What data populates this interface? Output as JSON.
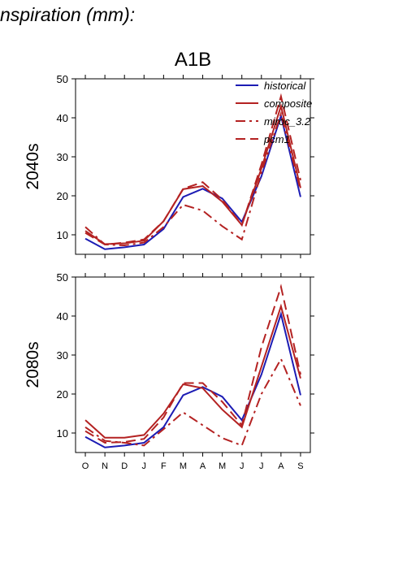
{
  "header": "nspiration (mm):",
  "chart_data": [
    {
      "type": "line",
      "title": "A1B",
      "ylabel": "2040s",
      "categories": [
        null,
        null,
        null,
        null,
        null,
        null,
        null,
        null,
        null,
        null,
        null,
        null
      ],
      "ylim": [
        5,
        50
      ],
      "yticks": [
        10,
        20,
        30,
        40,
        50
      ],
      "legend": "upper right",
      "series": [
        {
          "name": "historical",
          "color": "#1c1cb4",
          "linestyle": "solid",
          "values": [
            9,
            6.3,
            6.8,
            7.5,
            11.5,
            19.7,
            21.8,
            19.3,
            13.3,
            25,
            40.5,
            19.7
          ]
        },
        {
          "name": "composite",
          "color": "#b42222",
          "linestyle": "solid",
          "values": [
            11,
            7.6,
            7.8,
            8.5,
            13.5,
            21.7,
            22.5,
            18.5,
            12.5,
            27,
            43,
            22
          ]
        },
        {
          "name": "miroc_3.2",
          "color": "#b42222",
          "linestyle": "dashdot",
          "values": [
            12,
            7.5,
            7.3,
            8,
            12,
            17.7,
            16.2,
            12.2,
            8.8,
            26,
            41,
            21.5
          ]
        },
        {
          "name": "pcm1",
          "color": "#b42222",
          "linestyle": "dash",
          "values": [
            10.5,
            7.5,
            8,
            8.8,
            13.5,
            21.8,
            23.5,
            19,
            12.5,
            28,
            45.5,
            24
          ]
        }
      ]
    },
    {
      "type": "line",
      "ylabel": "2080s",
      "categories": [
        "O",
        "N",
        "D",
        "J",
        "F",
        "M",
        "A",
        "M",
        "J",
        "J",
        "A",
        "S"
      ],
      "ylim": [
        5,
        50
      ],
      "yticks": [
        10,
        20,
        30,
        40,
        50
      ],
      "series": [
        {
          "color": "#1c1cb4",
          "linestyle": "solid",
          "values": [
            9,
            6.3,
            6.8,
            7.5,
            11.5,
            19.7,
            21.8,
            19.3,
            13.3,
            25,
            40.5,
            19.7
          ]
        },
        {
          "color": "#b42222",
          "linestyle": "solid",
          "values": [
            13.3,
            8.8,
            8.8,
            9.5,
            15,
            22.5,
            21.5,
            16,
            11.5,
            27,
            42.5,
            24
          ]
        },
        {
          "color": "#b42222",
          "linestyle": "dashdot",
          "values": [
            11.5,
            8,
            7.5,
            6.8,
            11,
            15.3,
            12,
            8.7,
            6.8,
            20,
            29,
            17
          ]
        },
        {
          "color": "#b42222",
          "linestyle": "dash",
          "values": [
            10.5,
            7.5,
            7.7,
            8.5,
            14,
            22.8,
            22.8,
            18,
            12,
            32,
            47.5,
            25
          ]
        }
      ]
    }
  ]
}
